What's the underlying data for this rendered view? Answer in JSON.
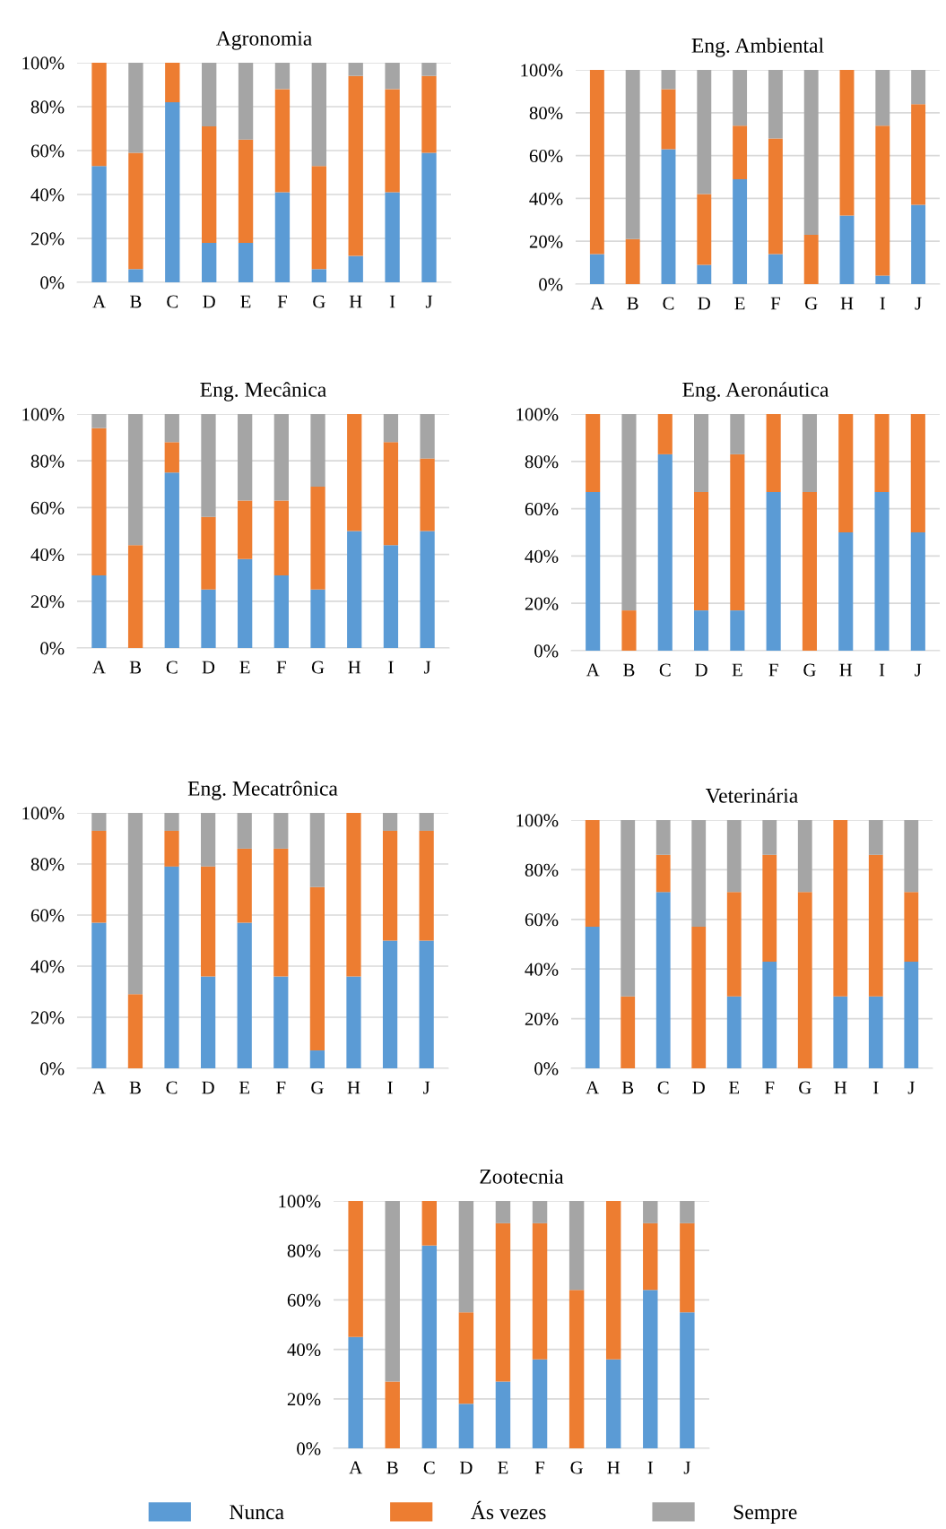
{
  "chart_data": [
    {
      "type": "bar",
      "stacked": true,
      "title": "Agronomia",
      "categories": [
        "A",
        "B",
        "C",
        "D",
        "E",
        "F",
        "G",
        "H",
        "I",
        "J"
      ],
      "ylim": [
        0,
        100
      ],
      "yticks": [
        {
          "value": 0,
          "label": "0%"
        },
        {
          "value": 20,
          "label": "20%"
        },
        {
          "value": 40,
          "label": "40%"
        },
        {
          "value": 60,
          "label": "60%"
        },
        {
          "value": 80,
          "label": "80%"
        },
        {
          "value": 100,
          "label": "100%"
        }
      ],
      "grid": "y",
      "series": [
        {
          "color": "#5b9bd5",
          "values": [
            53,
            6,
            82,
            18,
            18,
            41,
            6,
            12,
            41,
            59
          ]
        },
        {
          "color": "#ed7d31",
          "values": [
            47,
            53,
            18,
            53,
            47,
            47,
            47,
            82,
            47,
            35
          ]
        },
        {
          "color": "#a5a5a5",
          "values": [
            0,
            41,
            0,
            29,
            35,
            12,
            47,
            6,
            12,
            6
          ]
        }
      ]
    },
    {
      "type": "bar",
      "stacked": true,
      "title": "Eng. Ambiental",
      "categories": [
        "A",
        "B",
        "C",
        "D",
        "E",
        "F",
        "G",
        "H",
        "I",
        "J"
      ],
      "ylim": [
        0,
        100
      ],
      "yticks": [
        {
          "value": 0,
          "label": "0%"
        },
        {
          "value": 20,
          "label": "20%"
        },
        {
          "value": 40,
          "label": "40%"
        },
        {
          "value": 60,
          "label": "60%"
        },
        {
          "value": 80,
          "label": "80%"
        },
        {
          "value": 100,
          "label": "100%"
        }
      ],
      "grid": "y",
      "series": [
        {
          "color": "#5b9bd5",
          "values": [
            14,
            0,
            63,
            9,
            49,
            14,
            0,
            32,
            4,
            37
          ]
        },
        {
          "color": "#ed7d31",
          "values": [
            86,
            21,
            28,
            33,
            25,
            54,
            23,
            68,
            70,
            47
          ]
        },
        {
          "color": "#a5a5a5",
          "values": [
            0,
            79,
            9,
            58,
            26,
            32,
            77,
            0,
            26,
            16
          ]
        }
      ]
    },
    {
      "type": "bar",
      "stacked": true,
      "title": "Eng. Mecânica",
      "categories": [
        "A",
        "B",
        "C",
        "D",
        "E",
        "F",
        "G",
        "H",
        "I",
        "J"
      ],
      "ylim": [
        0,
        100
      ],
      "yticks": [
        {
          "value": 0,
          "label": "0%"
        },
        {
          "value": 20,
          "label": "20%"
        },
        {
          "value": 40,
          "label": "40%"
        },
        {
          "value": 60,
          "label": "60%"
        },
        {
          "value": 80,
          "label": "80%"
        },
        {
          "value": 100,
          "label": "100%"
        }
      ],
      "grid": "y",
      "series": [
        {
          "color": "#5b9bd5",
          "values": [
            31,
            0,
            75,
            25,
            38,
            31,
            25,
            50,
            44,
            50
          ]
        },
        {
          "color": "#ed7d31",
          "values": [
            63,
            44,
            13,
            31,
            25,
            32,
            44,
            50,
            44,
            31
          ]
        },
        {
          "color": "#a5a5a5",
          "values": [
            6,
            56,
            12,
            44,
            37,
            37,
            31,
            0,
            12,
            19
          ]
        }
      ]
    },
    {
      "type": "bar",
      "stacked": true,
      "title": "Eng. Aeronáutica",
      "categories": [
        "A",
        "B",
        "C",
        "D",
        "E",
        "F",
        "G",
        "H",
        "I",
        "J"
      ],
      "ylim": [
        0,
        100
      ],
      "yticks": [
        {
          "value": 0,
          "label": "0%"
        },
        {
          "value": 20,
          "label": "20%"
        },
        {
          "value": 40,
          "label": "40%"
        },
        {
          "value": 60,
          "label": "60%"
        },
        {
          "value": 80,
          "label": "80%"
        },
        {
          "value": 100,
          "label": "100%"
        }
      ],
      "grid": "y",
      "series": [
        {
          "color": "#5b9bd5",
          "values": [
            67,
            0,
            83,
            17,
            17,
            67,
            0,
            50,
            67,
            50
          ]
        },
        {
          "color": "#ed7d31",
          "values": [
            33,
            17,
            17,
            50,
            66,
            33,
            67,
            50,
            33,
            50
          ]
        },
        {
          "color": "#a5a5a5",
          "values": [
            0,
            83,
            0,
            33,
            17,
            0,
            33,
            0,
            0,
            0
          ]
        }
      ]
    },
    {
      "type": "bar",
      "stacked": true,
      "title": "Eng. Mecatrônica",
      "categories": [
        "A",
        "B",
        "C",
        "D",
        "E",
        "F",
        "G",
        "H",
        "I",
        "J"
      ],
      "ylim": [
        0,
        100
      ],
      "yticks": [
        {
          "value": 0,
          "label": "0%"
        },
        {
          "value": 20,
          "label": "20%"
        },
        {
          "value": 40,
          "label": "40%"
        },
        {
          "value": 60,
          "label": "60%"
        },
        {
          "value": 80,
          "label": "80%"
        },
        {
          "value": 100,
          "label": "100%"
        }
      ],
      "grid": "y",
      "series": [
        {
          "color": "#5b9bd5",
          "values": [
            57,
            0,
            79,
            36,
            57,
            36,
            7,
            36,
            50,
            50
          ]
        },
        {
          "color": "#ed7d31",
          "values": [
            36,
            29,
            14,
            43,
            29,
            50,
            64,
            64,
            43,
            43
          ]
        },
        {
          "color": "#a5a5a5",
          "values": [
            7,
            71,
            7,
            21,
            14,
            14,
            29,
            0,
            7,
            7
          ]
        }
      ]
    },
    {
      "type": "bar",
      "stacked": true,
      "title": "Veterinária",
      "categories": [
        "A",
        "B",
        "C",
        "D",
        "E",
        "F",
        "G",
        "H",
        "I",
        "J"
      ],
      "ylim": [
        0,
        100
      ],
      "yticks": [
        {
          "value": 0,
          "label": "0%"
        },
        {
          "value": 20,
          "label": "20%"
        },
        {
          "value": 40,
          "label": "40%"
        },
        {
          "value": 60,
          "label": "60%"
        },
        {
          "value": 80,
          "label": "80%"
        },
        {
          "value": 100,
          "label": "100%"
        }
      ],
      "grid": "y",
      "series": [
        {
          "color": "#5b9bd5",
          "values": [
            57,
            0,
            71,
            0,
            29,
            43,
            0,
            29,
            29,
            43
          ]
        },
        {
          "color": "#ed7d31",
          "values": [
            43,
            29,
            15,
            57,
            42,
            43,
            71,
            71,
            57,
            28
          ]
        },
        {
          "color": "#a5a5a5",
          "values": [
            0,
            71,
            14,
            43,
            29,
            14,
            29,
            0,
            14,
            29
          ]
        }
      ]
    },
    {
      "type": "bar",
      "stacked": true,
      "title": "Zootecnia",
      "categories": [
        "A",
        "B",
        "C",
        "D",
        "E",
        "F",
        "G",
        "H",
        "I",
        "J"
      ],
      "ylim": [
        0,
        100
      ],
      "yticks": [
        {
          "value": 0,
          "label": "0%"
        },
        {
          "value": 20,
          "label": "20%"
        },
        {
          "value": 40,
          "label": "40%"
        },
        {
          "value": 60,
          "label": "60%"
        },
        {
          "value": 80,
          "label": "80%"
        },
        {
          "value": 100,
          "label": "100%"
        }
      ],
      "grid": "y",
      "legend": "bottom",
      "series": [
        {
          "name": "Nunca",
          "color": "#5b9bd5",
          "values": [
            45,
            0,
            82,
            18,
            27,
            36,
            0,
            36,
            64,
            55
          ]
        },
        {
          "name": "Ás vezes",
          "color": "#ed7d31",
          "values": [
            55,
            27,
            18,
            37,
            64,
            55,
            64,
            64,
            27,
            36
          ]
        },
        {
          "name": "Sempre",
          "color": "#a5a5a5",
          "values": [
            0,
            73,
            0,
            45,
            9,
            9,
            36,
            0,
            9,
            9
          ]
        }
      ]
    }
  ]
}
